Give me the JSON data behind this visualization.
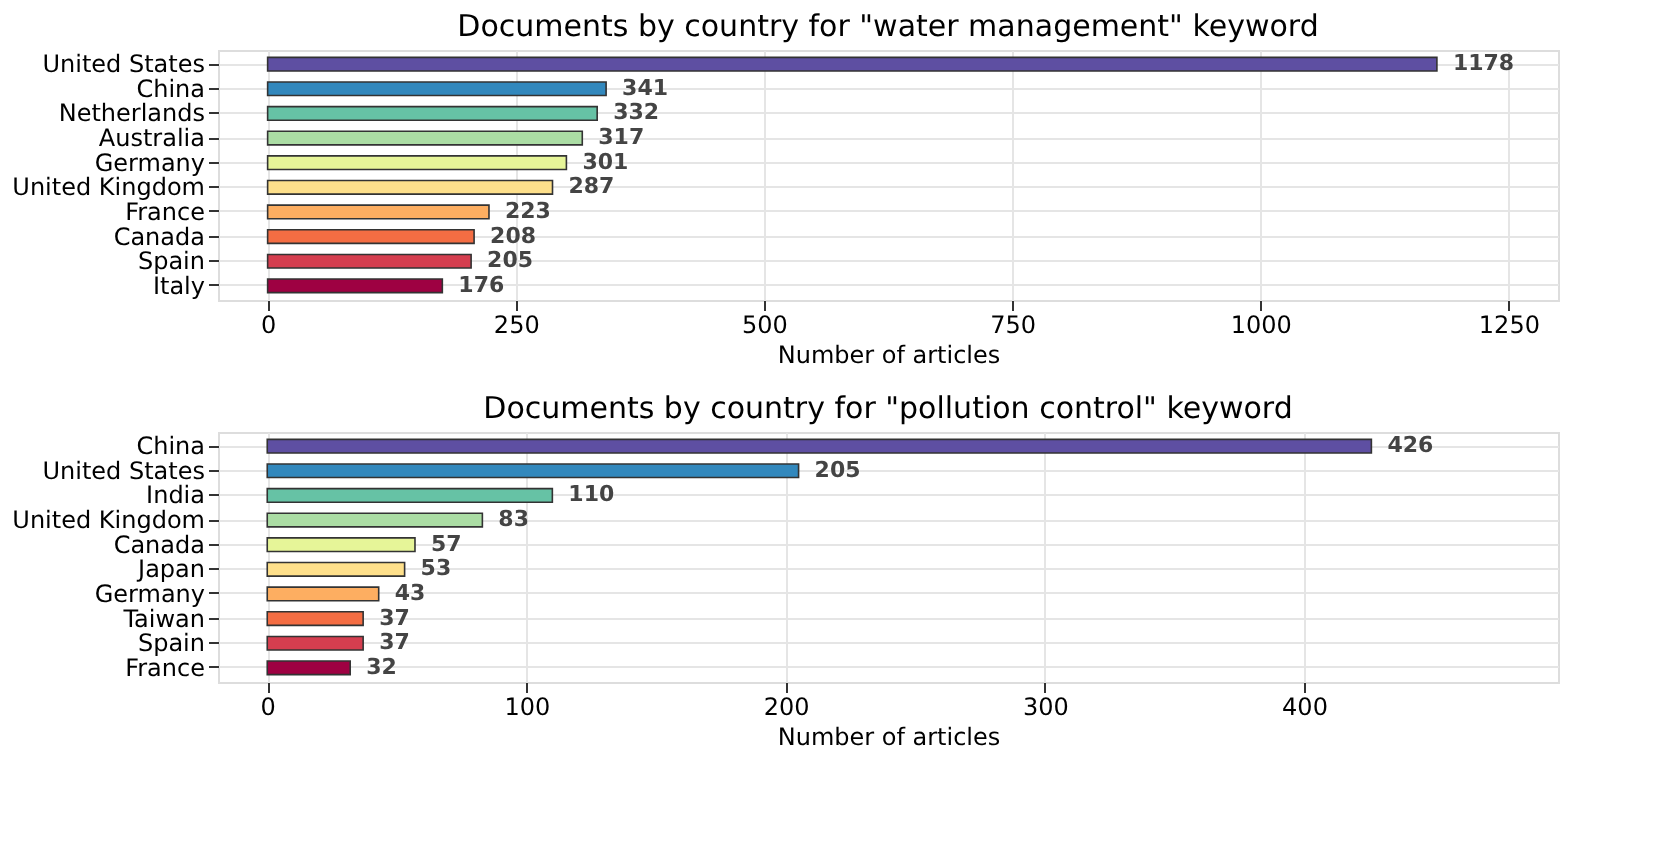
{
  "chart_data": [
    {
      "type": "bar",
      "orientation": "horizontal",
      "title": "Documents by country for \"water management\" keyword",
      "xlabel": "Number of articles",
      "categories": [
        "United States",
        "China",
        "Netherlands",
        "Australia",
        "Germany",
        "United Kingdom",
        "France",
        "Canada",
        "Spain",
        "Italy"
      ],
      "values": [
        1178,
        341,
        332,
        317,
        301,
        287,
        223,
        208,
        205,
        176
      ],
      "colors": [
        "#5e4fa2",
        "#3288bd",
        "#66c2a5",
        "#abdda4",
        "#e6f598",
        "#fee08b",
        "#fdae61",
        "#f46d43",
        "#d53e4f",
        "#9e0142"
      ],
      "xlim": [
        -50,
        1300
      ],
      "xticks": [
        0,
        250,
        500,
        750,
        1000,
        1250
      ],
      "grid": true,
      "data_labels": true,
      "legend": false
    },
    {
      "type": "bar",
      "orientation": "horizontal",
      "title": "Documents by country for \"pollution control\" keyword",
      "xlabel": "Number of articles",
      "categories": [
        "China",
        "United States",
        "India",
        "United Kingdom",
        "Canada",
        "Japan",
        "Germany",
        "Taiwan",
        "Spain",
        "France"
      ],
      "values": [
        426,
        205,
        110,
        83,
        57,
        53,
        43,
        37,
        37,
        32
      ],
      "colors": [
        "#5e4fa2",
        "#3288bd",
        "#66c2a5",
        "#abdda4",
        "#e6f598",
        "#fee08b",
        "#fdae61",
        "#f46d43",
        "#d53e4f",
        "#9e0142"
      ],
      "xlim": [
        -19,
        498
      ],
      "xticks": [
        0,
        100,
        200,
        300,
        400
      ],
      "grid": true,
      "data_labels": true,
      "legend": false
    }
  ]
}
